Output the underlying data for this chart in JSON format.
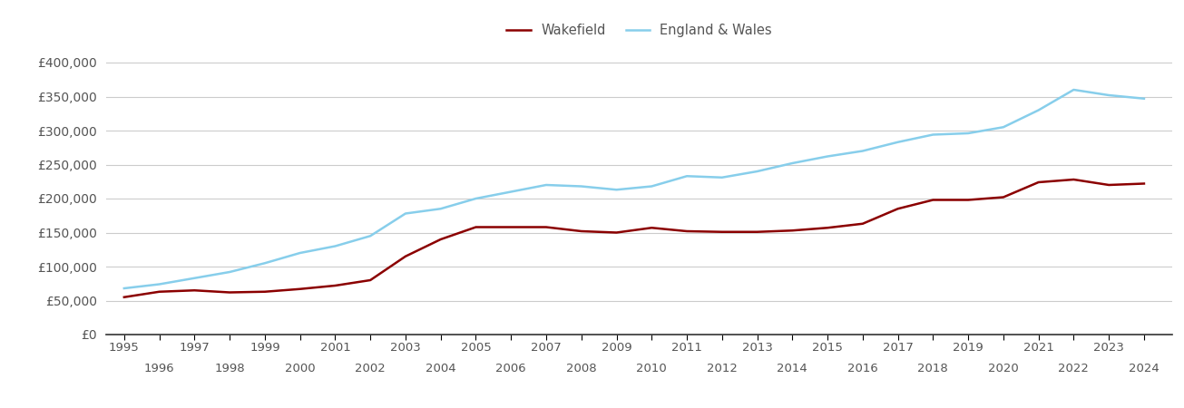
{
  "wakefield_years": [
    1995,
    1996,
    1997,
    1998,
    1999,
    2000,
    2001,
    2002,
    2003,
    2004,
    2005,
    2006,
    2007,
    2008,
    2009,
    2010,
    2011,
    2012,
    2013,
    2014,
    2015,
    2016,
    2017,
    2018,
    2019,
    2020,
    2021,
    2022,
    2023,
    2024
  ],
  "wakefield_values": [
    55000,
    63000,
    65000,
    62000,
    63000,
    67000,
    72000,
    80000,
    115000,
    140000,
    158000,
    158000,
    158000,
    152000,
    150000,
    157000,
    152000,
    151000,
    151000,
    153000,
    157000,
    163000,
    185000,
    198000,
    198000,
    202000,
    224000,
    228000,
    220000,
    222000
  ],
  "engwales_years": [
    1995,
    1996,
    1997,
    1998,
    1999,
    2000,
    2001,
    2002,
    2003,
    2004,
    2005,
    2006,
    2007,
    2008,
    2009,
    2010,
    2011,
    2012,
    2013,
    2014,
    2015,
    2016,
    2017,
    2018,
    2019,
    2020,
    2021,
    2022,
    2023,
    2024
  ],
  "engwales_values": [
    68000,
    74000,
    83000,
    92000,
    105000,
    120000,
    130000,
    145000,
    178000,
    185000,
    200000,
    210000,
    220000,
    218000,
    213000,
    218000,
    233000,
    231000,
    240000,
    252000,
    262000,
    270000,
    283000,
    294000,
    296000,
    305000,
    330000,
    360000,
    352000,
    347000
  ],
  "wakefield_color": "#8B0000",
  "engwales_color": "#87CEEB",
  "background_color": "#ffffff",
  "grid_color": "#cccccc",
  "ylim": [
    0,
    420000
  ],
  "yticks": [
    0,
    50000,
    100000,
    150000,
    200000,
    250000,
    300000,
    350000,
    400000
  ],
  "ytick_labels": [
    "£0",
    "£50,000",
    "£100,000",
    "£150,000",
    "£200,000",
    "£250,000",
    "£300,000",
    "£350,000",
    "£400,000"
  ],
  "legend_wakefield": "Wakefield",
  "legend_engwales": "England & Wales",
  "line_width": 1.8,
  "xmin": 1994.5,
  "xmax": 2024.8
}
